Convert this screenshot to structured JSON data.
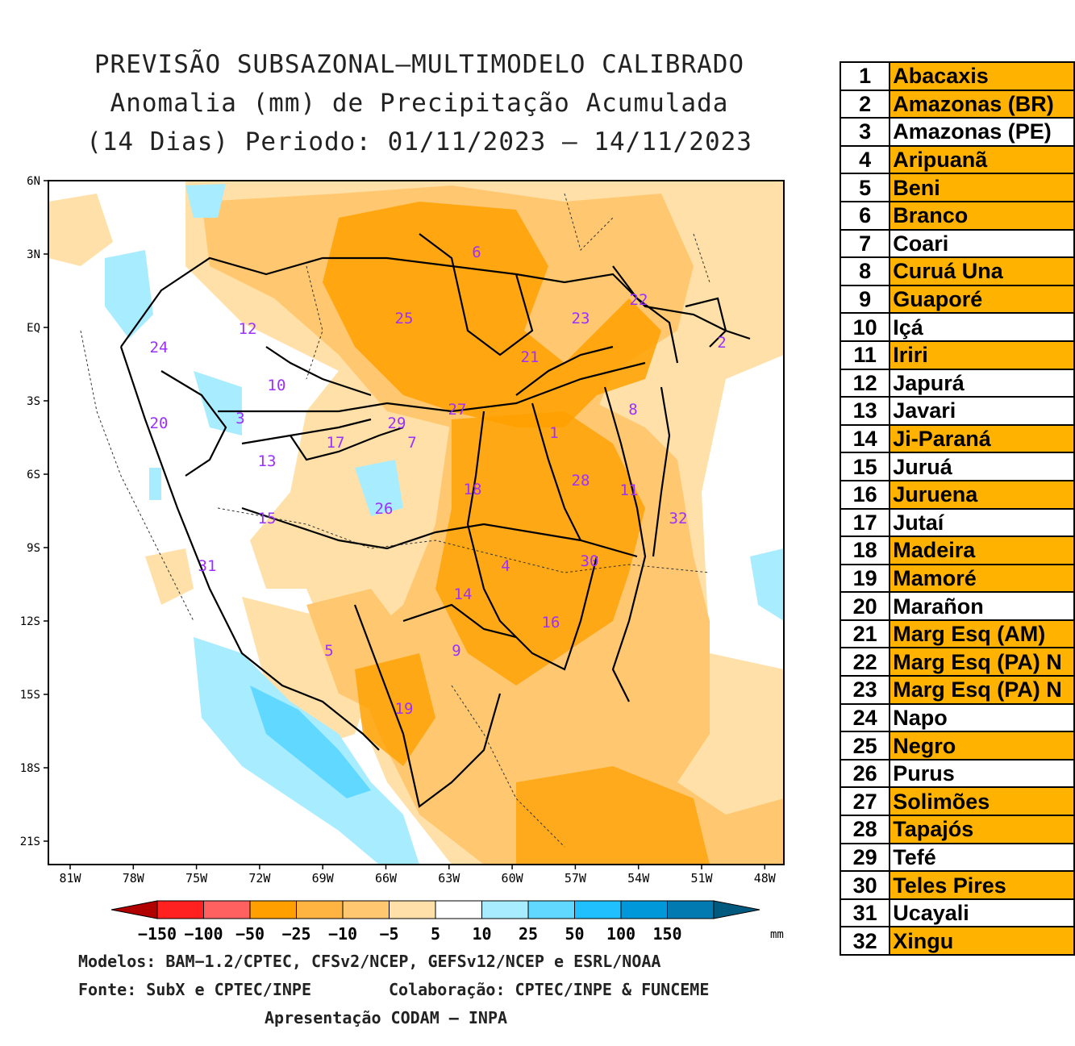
{
  "title": {
    "line1": "PREVISÃO SUBSAZONAL—MULTIMODELO CALIBRADO",
    "line2": "Anomalia (mm) de Precipitação Acumulada",
    "line3": "(14 Dias) Periodo: 01/11/2023 — 14/11/2023"
  },
  "map": {
    "lat_labels": [
      "6N",
      "3N",
      "EQ",
      "3S",
      "6S",
      "9S",
      "12S",
      "15S",
      "18S",
      "21S"
    ],
    "lon_labels": [
      "81W",
      "78W",
      "75W",
      "72W",
      "69W",
      "66W",
      "63W",
      "60W",
      "57W",
      "54W",
      "51W",
      "48W"
    ],
    "basin_labels": [
      "1",
      "2",
      "3",
      "4",
      "5",
      "6",
      "7",
      "8",
      "9",
      "10",
      "11",
      "12",
      "13",
      "14",
      "15",
      "16",
      "17",
      "18",
      "19",
      "20",
      "21",
      "22",
      "23",
      "24",
      "25",
      "26",
      "27",
      "28",
      "29",
      "30",
      "31",
      "32"
    ]
  },
  "colorbar": {
    "ticks": [
      "−150",
      "−100",
      "−50",
      "−25",
      "−10",
      "−5",
      "5",
      "10",
      "25",
      "50",
      "100",
      "150"
    ],
    "unit": "mm",
    "colors": [
      "#b00000",
      "#ff2020",
      "#ff6060",
      "#ffa000",
      "#ffb340",
      "#ffc870",
      "#ffe0a8",
      "#ffffff",
      "#a8ecff",
      "#60d8ff",
      "#20c0ff",
      "#0098d8",
      "#007ab0",
      "#005a80"
    ]
  },
  "footer": {
    "models": "Modelos: BAM−1.2/CPTEC, CFSv2/NCEP, GEFSv12/NCEP e ESRL/NOAA",
    "source": "Fonte: SubX e CPTEC/INPE",
    "collab": "Colaboração: CPTEC/INPE & FUNCEME",
    "presentation": "Apresentação CODAM — INPA"
  },
  "table": {
    "rows": [
      {
        "num": "1",
        "name": "Abacaxis",
        "highlight": true
      },
      {
        "num": "2",
        "name": "Amazonas (BR)",
        "highlight": true
      },
      {
        "num": "3",
        "name": "Amazonas (PE)",
        "highlight": false
      },
      {
        "num": "4",
        "name": "Aripuanã",
        "highlight": true
      },
      {
        "num": "5",
        "name": "Beni",
        "highlight": true
      },
      {
        "num": "6",
        "name": "Branco",
        "highlight": true
      },
      {
        "num": "7",
        "name": "Coari",
        "highlight": false
      },
      {
        "num": "8",
        "name": "Curuá Una",
        "highlight": true
      },
      {
        "num": "9",
        "name": "Guaporé",
        "highlight": true
      },
      {
        "num": "10",
        "name": "Içá",
        "highlight": false
      },
      {
        "num": "11",
        "name": "Iriri",
        "highlight": true
      },
      {
        "num": "12",
        "name": "Japurá",
        "highlight": false
      },
      {
        "num": "13",
        "name": "Javari",
        "highlight": false
      },
      {
        "num": "14",
        "name": "Ji-Paraná",
        "highlight": true
      },
      {
        "num": "15",
        "name": "Juruá",
        "highlight": false
      },
      {
        "num": "16",
        "name": "Juruena",
        "highlight": true
      },
      {
        "num": "17",
        "name": "Jutaí",
        "highlight": false
      },
      {
        "num": "18",
        "name": "Madeira",
        "highlight": true
      },
      {
        "num": "19",
        "name": "Mamoré",
        "highlight": true
      },
      {
        "num": "20",
        "name": "Marañon",
        "highlight": false
      },
      {
        "num": "21",
        "name": "Marg Esq (AM)",
        "highlight": true
      },
      {
        "num": "22",
        "name": "Marg Esq (PA) N",
        "highlight": true
      },
      {
        "num": "23",
        "name": "Marg Esq (PA) N",
        "highlight": true
      },
      {
        "num": "24",
        "name": "Napo",
        "highlight": false
      },
      {
        "num": "25",
        "name": "Negro",
        "highlight": true
      },
      {
        "num": "26",
        "name": "Purus",
        "highlight": false
      },
      {
        "num": "27",
        "name": "Solimões",
        "highlight": true
      },
      {
        "num": "28",
        "name": "Tapajós",
        "highlight": true
      },
      {
        "num": "29",
        "name": "Tefé",
        "highlight": false
      },
      {
        "num": "30",
        "name": "Teles Pires",
        "highlight": true
      },
      {
        "num": "31",
        "name": "Ucayali",
        "highlight": false
      },
      {
        "num": "32",
        "name": "Xingu",
        "highlight": true
      }
    ]
  }
}
